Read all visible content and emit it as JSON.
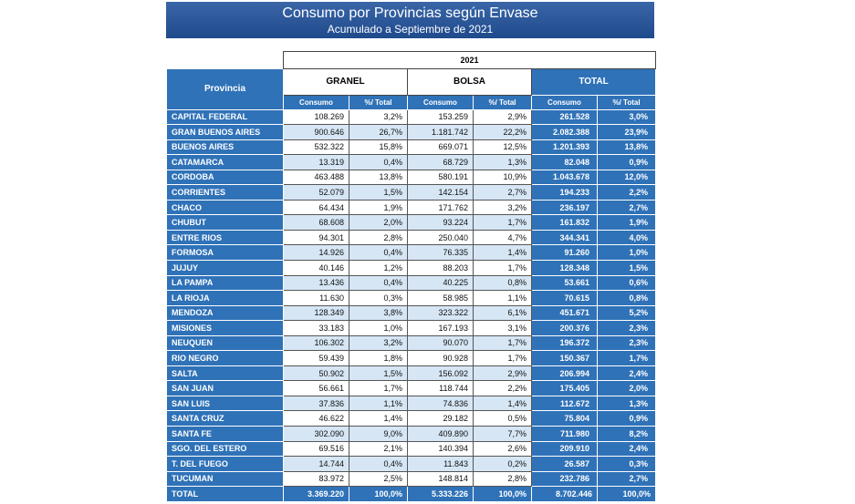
{
  "title": "Consumo por Provincias según Envase",
  "subtitle": "Acumulado a Septiembre de 2021",
  "table": {
    "year": "2021",
    "province_header": "Provincia",
    "groups": [
      "GRANEL",
      "BOLSA",
      "TOTAL"
    ],
    "subheaders": [
      "Consumo",
      "%/ Total",
      "Consumo",
      "%/ Total",
      "Consumo",
      "%/ Total"
    ],
    "rows": [
      [
        "CAPITAL FEDERAL",
        "108.269",
        "3,2%",
        "153.259",
        "2,9%",
        "261.528",
        "3,0%"
      ],
      [
        "GRAN BUENOS AIRES",
        "900.646",
        "26,7%",
        "1.181.742",
        "22,2%",
        "2.082.388",
        "23,9%"
      ],
      [
        "BUENOS AIRES",
        "532.322",
        "15,8%",
        "669.071",
        "12,5%",
        "1.201.393",
        "13,8%"
      ],
      [
        "CATAMARCA",
        "13.319",
        "0,4%",
        "68.729",
        "1,3%",
        "82.048",
        "0,9%"
      ],
      [
        "CORDOBA",
        "463.488",
        "13,8%",
        "580.191",
        "10,9%",
        "1.043.678",
        "12,0%"
      ],
      [
        "CORRIENTES",
        "52.079",
        "1,5%",
        "142.154",
        "2,7%",
        "194.233",
        "2,2%"
      ],
      [
        "CHACO",
        "64.434",
        "1,9%",
        "171.762",
        "3,2%",
        "236.197",
        "2,7%"
      ],
      [
        "CHUBUT",
        "68.608",
        "2,0%",
        "93.224",
        "1,7%",
        "161.832",
        "1,9%"
      ],
      [
        "ENTRE RIOS",
        "94.301",
        "2,8%",
        "250.040",
        "4,7%",
        "344.341",
        "4,0%"
      ],
      [
        "FORMOSA",
        "14.926",
        "0,4%",
        "76.335",
        "1,4%",
        "91.260",
        "1,0%"
      ],
      [
        "JUJUY",
        "40.146",
        "1,2%",
        "88.203",
        "1,7%",
        "128.348",
        "1,5%"
      ],
      [
        "LA PAMPA",
        "13.436",
        "0,4%",
        "40.225",
        "0,8%",
        "53.661",
        "0,6%"
      ],
      [
        "LA RIOJA",
        "11.630",
        "0,3%",
        "58.985",
        "1,1%",
        "70.615",
        "0,8%"
      ],
      [
        "MENDOZA",
        "128.349",
        "3,8%",
        "323.322",
        "6,1%",
        "451.671",
        "5,2%"
      ],
      [
        "MISIONES",
        "33.183",
        "1,0%",
        "167.193",
        "3,1%",
        "200.376",
        "2,3%"
      ],
      [
        "NEUQUEN",
        "106.302",
        "3,2%",
        "90.070",
        "1,7%",
        "196.372",
        "2,3%"
      ],
      [
        "RIO NEGRO",
        "59.439",
        "1,8%",
        "90.928",
        "1,7%",
        "150.367",
        "1,7%"
      ],
      [
        "SALTA",
        "50.902",
        "1,5%",
        "156.092",
        "2,9%",
        "206.994",
        "2,4%"
      ],
      [
        "SAN JUAN",
        "56.661",
        "1,7%",
        "118.744",
        "2,2%",
        "175.405",
        "2,0%"
      ],
      [
        "SAN LUIS",
        "37.836",
        "1,1%",
        "74.836",
        "1,4%",
        "112.672",
        "1,3%"
      ],
      [
        "SANTA CRUZ",
        "46.622",
        "1,4%",
        "29.182",
        "0,5%",
        "75.804",
        "0,9%"
      ],
      [
        "SANTA FE",
        "302.090",
        "9,0%",
        "409.890",
        "7,7%",
        "711.980",
        "8,2%"
      ],
      [
        "SGO. DEL ESTERO",
        "69.516",
        "2,1%",
        "140.394",
        "2,6%",
        "209.910",
        "2,4%"
      ],
      [
        "T. DEL FUEGO",
        "14.744",
        "0,4%",
        "11.843",
        "0,2%",
        "26.587",
        "0,3%"
      ],
      [
        "TUCUMAN",
        "83.972",
        "2,5%",
        "148.814",
        "2,8%",
        "232.786",
        "2,7%"
      ]
    ],
    "total": [
      "TOTAL",
      "3.369.220",
      "100,0%",
      "5.333.226",
      "100,0%",
      "8.702.446",
      "100,0%"
    ]
  },
  "colors": {
    "header_blue": "#2f72b8",
    "banner_blue": "#1f4a8c",
    "shade": "#d6e6f5"
  }
}
